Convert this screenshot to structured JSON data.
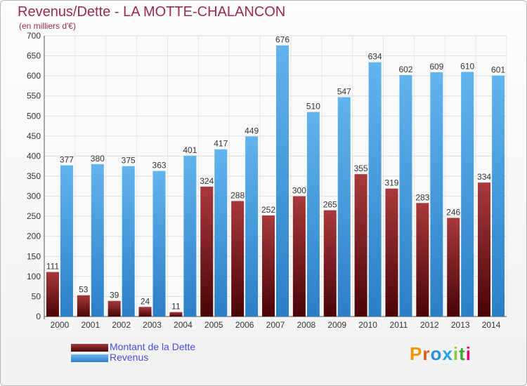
{
  "chart_data": {
    "type": "bar",
    "title": "Revenus/Dette - LA MOTTE-CHALANCON",
    "subtitle": "(en milliers d'€)",
    "categories": [
      "2000",
      "2001",
      "2002",
      "2003",
      "2004",
      "2005",
      "2006",
      "2007",
      "2008",
      "2009",
      "2010",
      "2011",
      "2012",
      "2013",
      "2014"
    ],
    "series": [
      {
        "name": "Montant de la Dette",
        "color": "#7a1f22",
        "values": [
          111,
          53,
          39,
          24,
          11,
          324,
          288,
          252,
          300,
          265,
          355,
          319,
          283,
          246,
          334
        ]
      },
      {
        "name": "Revenus",
        "color": "#4aa3e6",
        "values": [
          377,
          380,
          375,
          363,
          401,
          417,
          449,
          676,
          510,
          547,
          634,
          602,
          609,
          610,
          601
        ]
      }
    ],
    "ylim": [
      0,
      700
    ],
    "yticks": [
      0,
      50,
      100,
      150,
      200,
      250,
      300,
      350,
      400,
      450,
      500,
      550,
      600,
      650,
      700
    ],
    "grid": true,
    "legend_position": "bottom-left"
  },
  "branding": {
    "logo_letters": [
      "P",
      "r",
      "o",
      "x",
      "i",
      "t",
      "i"
    ]
  }
}
